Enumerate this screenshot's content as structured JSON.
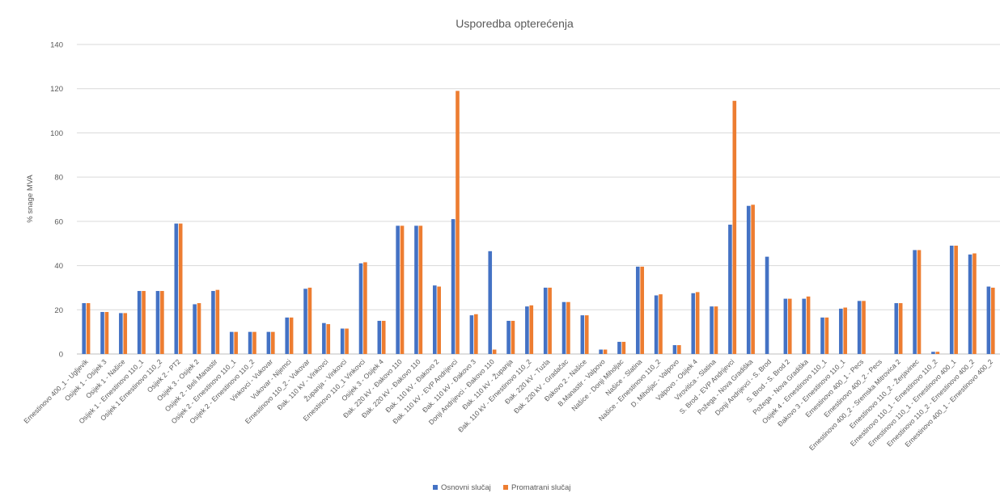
{
  "chart_data": {
    "type": "bar",
    "title": "Usporedba opterećenja",
    "xlabel": "",
    "ylabel": "% snage MVA",
    "ylim": [
      0,
      140
    ],
    "yticks": [
      0,
      20,
      40,
      60,
      80,
      100,
      120,
      140
    ],
    "grid": true,
    "legend_position": "bottom",
    "categories": [
      "Ernestinovo 400_1 - Ugljevik",
      "Osijek 1 - Osijek 3",
      "Osijek 1 - Našice",
      "Osijek 1 - Ernestinovo 110_1",
      "Osijek 1 Ernestinovo 110_2",
      "Osijek 2 - PT2",
      "Osijek 3 - Osijek 2",
      "Osijek 2 - Beli Manastir",
      "Osijek 2 - Ernestinovo 110_1",
      "Osijek 2 - Ernestinovo 110_2",
      "Vinkovci - Vukovar",
      "Vukovar - Nijemci",
      "Ernestinovo 110_2 - Vukovar",
      "Đak. 110 kV - Vinkovci",
      "Županja - Vinkovci",
      "Ernestinovo 110_1 Vinkovci",
      "Osijek 3 - Osijek 4",
      "Đak. 220 kV - Đakovo 110",
      "Đak. 220 kV - Đakovo 110",
      "Đak. 110 kV - Đakovo 2",
      "Đak. 110 kV - EVP Andrijevci",
      "Đak. 110 kV - Đakovo 3",
      "Donji Andrijevci - Đakovo 110",
      "Đak. 110 kV - Županja",
      "Đak. 110 kV - Ernestinovo 110_2",
      "Đak. 220 kV - Tuzla",
      "Đak. 220 kV - Gradačac",
      "Đakovo 2 - Našice",
      "B.Manastir - Valpovo",
      "Našice - Donji Miholjac",
      "Našice - Slatina",
      "Našice - Ernestinovo 110_2",
      "D. Miholjac - Valpovo",
      "Valpovo - Osijek 4",
      "Virovitica - Slatina",
      "S. Brod - EVP Andrijevci",
      "Požega - Nova Gradiška",
      "Donji Andrijevci - S. Brod",
      "S. Brod - S. Brod 2",
      "Požega - Nova Gradiška",
      "Osijek 4 - Ernestinovo 110_1",
      "Đakovo 3 - Ernestinovo 110_1",
      "Ernestinovo 400_1 - Pecs",
      "Ernestinovo 400_2 - Pecs",
      "Ernestinovo 400_2 - Sremska Mitrovica 2",
      "Ernestinovo 110_2 - Žerjavinec",
      "Ernestinovo 110_1 - Ernestinovo 110_2",
      "Ernestinovo 110_1 - Ernestinovo 400_1",
      "Ernestinovo 110_2 - Ernestinovo 400_2",
      "Ernestinovo 400_1 - Ernestinovo 400_2"
    ],
    "series": [
      {
        "name": "Osnovni slučaj",
        "color": "#4472c4",
        "values": [
          23,
          19,
          18.5,
          28.5,
          28.5,
          59,
          22.5,
          28.5,
          10,
          10,
          10,
          16.5,
          29.5,
          14,
          11.5,
          41,
          15,
          58,
          58,
          31,
          61,
          17.5,
          46.5,
          15,
          21.5,
          30,
          23.5,
          17.5,
          2,
          5.5,
          39.5,
          26.5,
          4,
          27.5,
          21.5,
          58.5,
          67,
          44,
          25,
          25,
          16.5,
          20.5,
          24,
          0,
          23,
          47,
          1,
          49,
          45,
          30.5
        ]
      },
      {
        "name": "Promatrani slučaj",
        "color": "#ed7d31",
        "values": [
          23,
          19,
          18.5,
          28.5,
          28.5,
          59,
          23,
          29,
          10,
          10,
          10,
          16.5,
          30,
          13.5,
          11.5,
          41.5,
          15,
          58,
          58,
          30.5,
          119,
          18,
          2,
          15,
          22,
          30,
          23.5,
          17.5,
          2,
          5.5,
          39.5,
          27,
          4,
          28,
          21.5,
          114.5,
          67.5,
          0,
          25,
          26,
          16.5,
          21,
          24,
          0,
          23,
          47,
          1,
          49,
          45.5,
          30
        ]
      }
    ]
  }
}
